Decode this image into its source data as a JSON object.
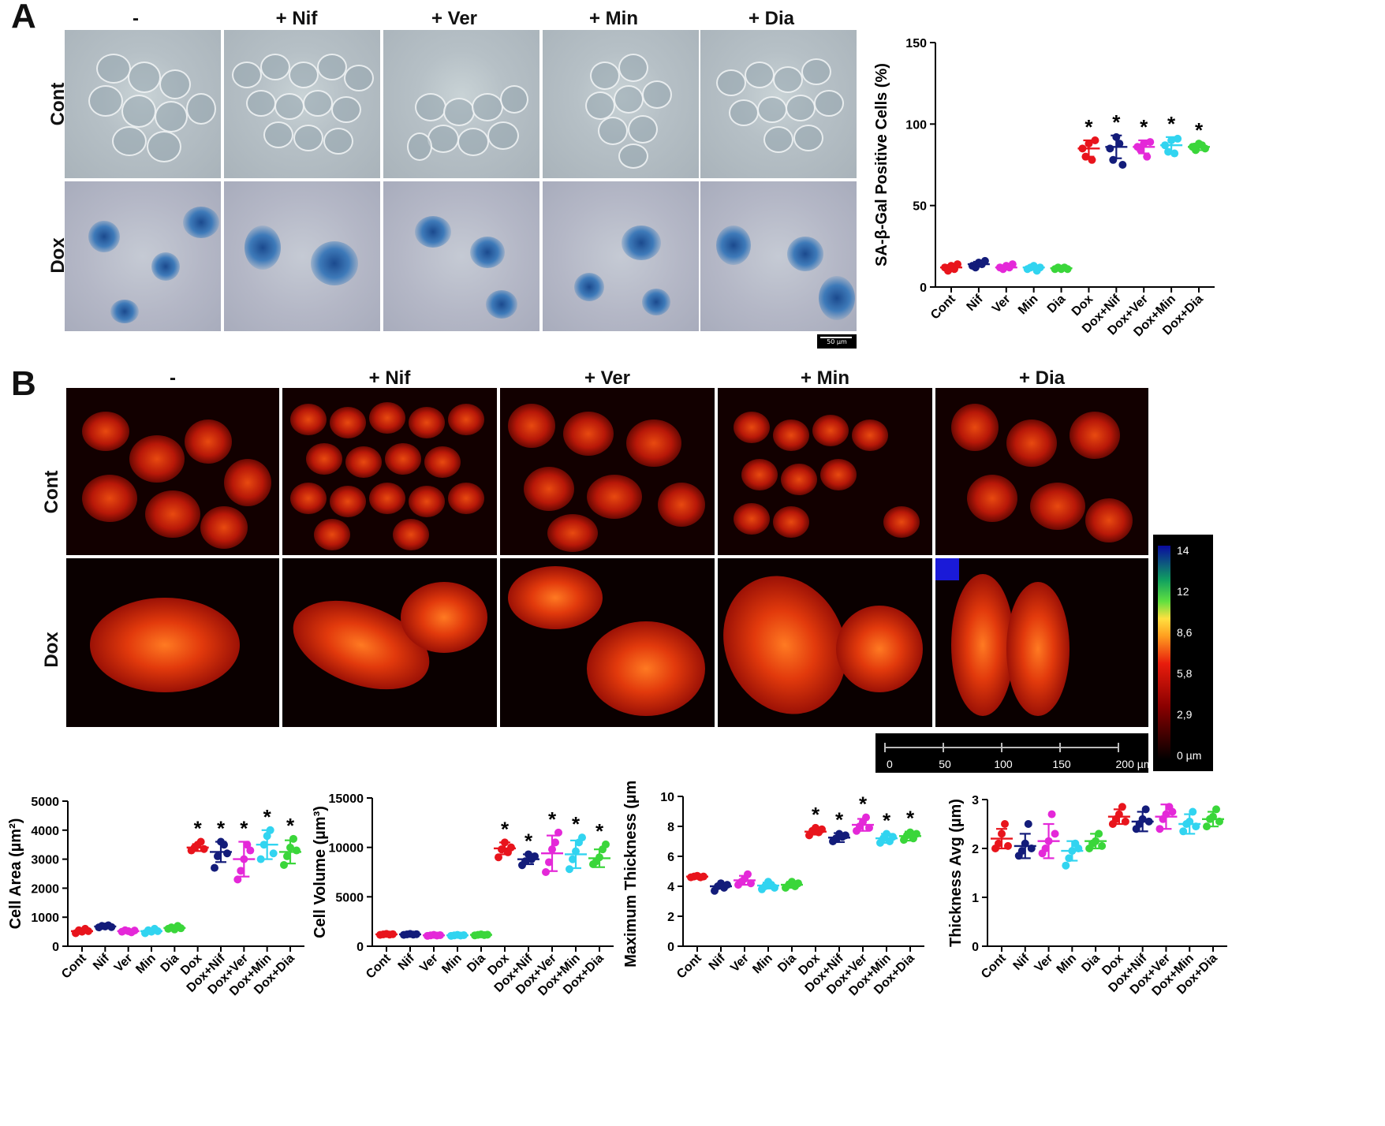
{
  "panel_a": {
    "letter": "A",
    "columns": [
      "-",
      "+ Nif",
      "+ Ver",
      "+ Min",
      "+ Dia"
    ],
    "rows": [
      "Cont",
      "Dox"
    ],
    "scale_label": "50 µm"
  },
  "panel_b": {
    "letter": "B",
    "columns": [
      "-",
      "+ Nif",
      "+ Ver",
      "+ Min",
      "+ Dia"
    ],
    "rows": [
      "Cont",
      "Dox"
    ],
    "colorbar_ticks": [
      "14",
      "12",
      "8,6",
      "5,8",
      "2,9",
      "0 µm"
    ],
    "scale_ticks": [
      "0",
      "50",
      "100",
      "150",
      "200 µm"
    ]
  },
  "colors": {
    "Cont": "#e8141c",
    "Nif": "#131c7a",
    "Ver": "#e428d8",
    "Min": "#31d4f0",
    "Dia": "#3ad63a",
    "Dox": "#e8141c",
    "Dox+Nif": "#131c7a",
    "Dox+Ver": "#e428d8",
    "Dox+Min": "#31d4f0",
    "Dox+Dia": "#3ad63a"
  },
  "chart_data": [
    {
      "id": "sa-gal",
      "type": "scatter",
      "ylabel": "SA-β-Gal Positive Cells (%)",
      "ylim": [
        0,
        150
      ],
      "yticks": [
        "0",
        "50",
        "100",
        "150"
      ],
      "categories": [
        "Cont",
        "Nif",
        "Ver",
        "Min",
        "Dia",
        "Dox",
        "Dox+Nif",
        "Dox+Ver",
        "Dox+Min",
        "Dox+Dia"
      ],
      "points": [
        [
          12,
          10,
          13,
          11,
          14
        ],
        [
          13,
          12,
          15,
          14,
          16
        ],
        [
          12,
          11,
          13,
          12,
          14
        ],
        [
          11,
          12,
          13,
          10,
          12
        ],
        [
          11,
          12,
          11,
          12,
          11
        ],
        [
          85,
          80,
          88,
          78,
          90
        ],
        [
          85,
          78,
          92,
          88,
          75
        ],
        [
          86,
          84,
          88,
          80,
          89
        ],
        [
          87,
          83,
          90,
          82,
          91
        ],
        [
          86,
          84,
          88,
          87,
          85
        ]
      ],
      "means": [
        12,
        14,
        12,
        12,
        11.5,
        85,
        86,
        86,
        87,
        86
      ],
      "sd": [
        1.5,
        1.5,
        1,
        1,
        0.5,
        5,
        7,
        4,
        5,
        2
      ],
      "significant": [
        false,
        false,
        false,
        false,
        false,
        true,
        true,
        true,
        true,
        true
      ],
      "sig_mark": "*"
    },
    {
      "id": "cell-area",
      "type": "scatter",
      "ylabel": "Cell Area (µm²)",
      "ylim": [
        0,
        5000
      ],
      "yticks": [
        "0",
        "1000",
        "2000",
        "3000",
        "4000",
        "5000"
      ],
      "categories": [
        "Cont",
        "Nif",
        "Ver",
        "Min",
        "Dia",
        "Dox",
        "Dox+Nif",
        "Dox+Ver",
        "Dox+Min",
        "Dox+Dia"
      ],
      "points": [
        [
          450,
          550,
          500,
          600,
          520
        ],
        [
          650,
          700,
          680,
          720,
          660
        ],
        [
          500,
          550,
          520,
          480,
          540
        ],
        [
          450,
          550,
          500,
          600,
          520
        ],
        [
          600,
          650,
          580,
          700,
          620
        ],
        [
          3300,
          3400,
          3500,
          3600,
          3350
        ],
        [
          2700,
          3100,
          3600,
          3500,
          3200
        ],
        [
          2300,
          2600,
          3000,
          3500,
          3300
        ],
        [
          3000,
          3500,
          3800,
          4000,
          3200
        ],
        [
          2800,
          3100,
          3400,
          3700,
          3300
        ]
      ],
      "means": [
        520,
        680,
        520,
        520,
        630,
        3400,
        3250,
        3000,
        3500,
        3250
      ],
      "sd": [
        60,
        30,
        40,
        60,
        50,
        120,
        350,
        600,
        500,
        400
      ],
      "significant": [
        false,
        false,
        false,
        false,
        false,
        true,
        true,
        true,
        true,
        true
      ],
      "sig_mark": "*"
    },
    {
      "id": "cell-volume",
      "type": "scatter",
      "ylabel": "Cell Volume (µm³)",
      "ylim": [
        0,
        15000
      ],
      "yticks": [
        "0",
        "5000",
        "10000",
        "15000"
      ],
      "categories": [
        "Cont",
        "Nif",
        "Ver",
        "Min",
        "Dia",
        "Dox",
        "Dox+Nif",
        "Dox+Ver",
        "Dox+Min",
        "Dox+Dia"
      ],
      "points": [
        [
          1150,
          1200,
          1250,
          1180,
          1220
        ],
        [
          1150,
          1200,
          1250,
          1180,
          1220
        ],
        [
          1050,
          1100,
          1150,
          1080,
          1120
        ],
        [
          1050,
          1100,
          1150,
          1080,
          1120
        ],
        [
          1100,
          1150,
          1200,
          1130,
          1170
        ],
        [
          9000,
          9800,
          10500,
          9500,
          10000
        ],
        [
          8200,
          8600,
          9300,
          8800,
          9100
        ],
        [
          7500,
          8500,
          9800,
          10500,
          11500
        ],
        [
          7800,
          8800,
          9600,
          10500,
          11000
        ],
        [
          8300,
          8600,
          9000,
          9800,
          10300
        ]
      ],
      "means": [
        1200,
        1200,
        1100,
        1100,
        1150,
        9900,
        8800,
        9400,
        9300,
        8900
      ],
      "sd": [
        50,
        50,
        50,
        50,
        50,
        600,
        500,
        1800,
        1400,
        900
      ],
      "significant": [
        false,
        false,
        false,
        false,
        false,
        true,
        true,
        true,
        true,
        true
      ],
      "sig_mark": "*"
    },
    {
      "id": "max-thickness",
      "type": "scatter",
      "ylabel": "Maximum Thickness (µm)",
      "ylim": [
        0,
        10
      ],
      "yticks": [
        "0",
        "2",
        "4",
        "6",
        "8",
        "10"
      ],
      "categories": [
        "Cont",
        "Nif",
        "Ver",
        "Min",
        "Dia",
        "Dox",
        "Dox+Nif",
        "Dox+Ver",
        "Dox+Min",
        "Dox+Dia"
      ],
      "points": [
        [
          4.6,
          4.65,
          4.7,
          4.6,
          4.65
        ],
        [
          3.7,
          4.0,
          4.2,
          3.9,
          4.1
        ],
        [
          4.1,
          4.3,
          4.5,
          4.8,
          4.2
        ],
        [
          3.8,
          4.0,
          4.3,
          4.1,
          3.9
        ],
        [
          3.9,
          4.1,
          4.3,
          4.0,
          4.2
        ],
        [
          7.4,
          7.7,
          7.9,
          7.6,
          7.8
        ],
        [
          7.0,
          7.2,
          7.5,
          7.3,
          7.4
        ],
        [
          7.7,
          8.0,
          8.3,
          8.6,
          7.9
        ],
        [
          6.9,
          7.2,
          7.5,
          7.0,
          7.3
        ],
        [
          7.1,
          7.4,
          7.6,
          7.2,
          7.5
        ]
      ],
      "means": [
        4.65,
        4.0,
        4.4,
        4.05,
        4.1,
        7.65,
        7.25,
        8.1,
        7.2,
        7.35
      ],
      "sd": [
        0.05,
        0.15,
        0.3,
        0.2,
        0.2,
        0.2,
        0.3,
        0.4,
        0.3,
        0.3
      ],
      "significant": [
        false,
        false,
        false,
        false,
        false,
        true,
        true,
        true,
        true,
        true
      ],
      "sig_mark": "*"
    },
    {
      "id": "thickness-avg",
      "type": "scatter",
      "ylabel": "Thickness Avg (µm)",
      "ylim": [
        0,
        3
      ],
      "yticks": [
        "0",
        "1",
        "2",
        "3"
      ],
      "categories": [
        "Cont",
        "Nif",
        "Ver",
        "Min",
        "Dia",
        "Dox",
        "Dox+Nif",
        "Dox+Ver",
        "Dox+Min",
        "Dox+Dia"
      ],
      "points": [
        [
          2.0,
          2.1,
          2.3,
          2.5,
          2.05
        ],
        [
          1.85,
          1.95,
          2.1,
          2.5,
          2.0
        ],
        [
          1.9,
          2.0,
          2.15,
          2.7,
          2.3
        ],
        [
          1.65,
          1.8,
          1.95,
          2.1,
          2.0
        ],
        [
          2.0,
          2.1,
          2.15,
          2.3,
          2.05
        ],
        [
          2.5,
          2.6,
          2.7,
          2.85,
          2.55
        ],
        [
          2.4,
          2.5,
          2.6,
          2.8,
          2.55
        ],
        [
          2.4,
          2.6,
          2.7,
          2.85,
          2.75
        ],
        [
          2.35,
          2.5,
          2.55,
          2.75,
          2.45
        ],
        [
          2.45,
          2.6,
          2.65,
          2.8,
          2.55
        ]
      ],
      "means": [
        2.2,
        2.05,
        2.15,
        1.95,
        2.15,
        2.65,
        2.55,
        2.65,
        2.5,
        2.6
      ],
      "sd": [
        0.2,
        0.25,
        0.35,
        0.2,
        0.15,
        0.15,
        0.2,
        0.25,
        0.2,
        0.15
      ],
      "significant": [
        false,
        false,
        false,
        false,
        false,
        false,
        false,
        false,
        false,
        false
      ],
      "sig_mark": "*"
    }
  ]
}
